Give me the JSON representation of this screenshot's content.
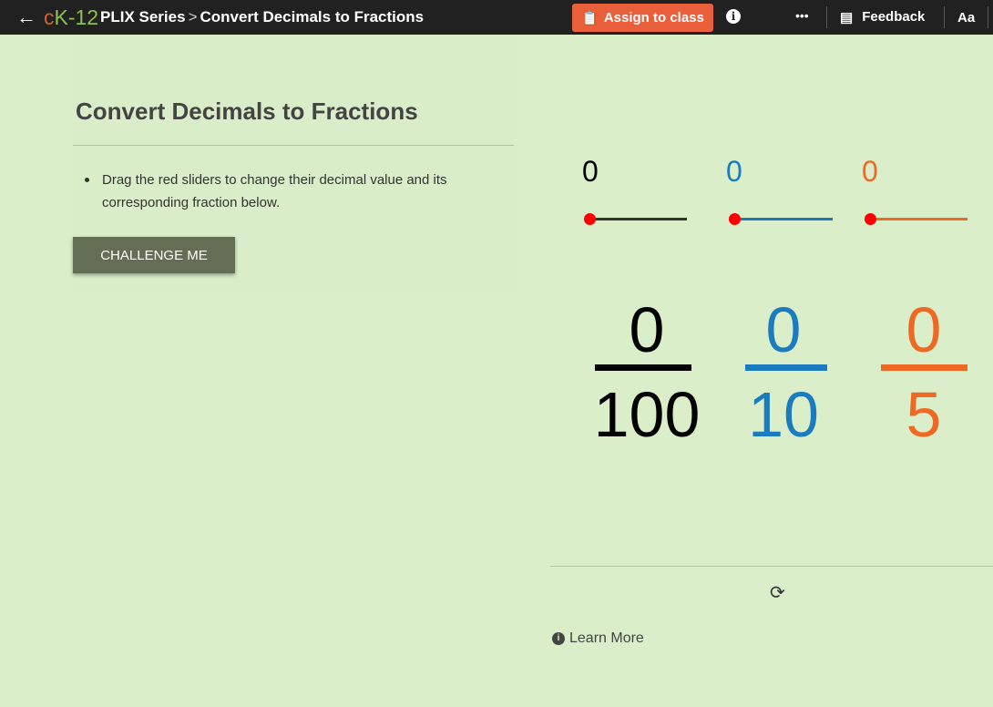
{
  "header": {
    "logo": "cK-12",
    "series": "PLIX Series",
    "separator": ">",
    "title": "Convert Decimals to Fractions",
    "assign_label": "Assign to class",
    "feedback_label": "Feedback",
    "font_label": "Aa",
    "more": "•••"
  },
  "content": {
    "title": "Convert Decimals to Fractions",
    "instruction": "Drag the red sliders to change their decimal value and its corresponding fraction below.",
    "challenge_label": "CHALLENGE ME",
    "learn_more": "Learn More"
  },
  "sliders": [
    {
      "value": "0",
      "numerator": "0",
      "denominator": "100",
      "color": "#000000",
      "fraction": 0
    },
    {
      "value": "0",
      "numerator": "0",
      "denominator": "10",
      "color": "#1a7bbf",
      "fraction": 0
    },
    {
      "value": "0",
      "numerator": "0",
      "denominator": "5",
      "color": "#ee6a24",
      "fraction": 0
    }
  ],
  "colors": {
    "accent": "#e95f3a",
    "knob": "#ff0000"
  }
}
